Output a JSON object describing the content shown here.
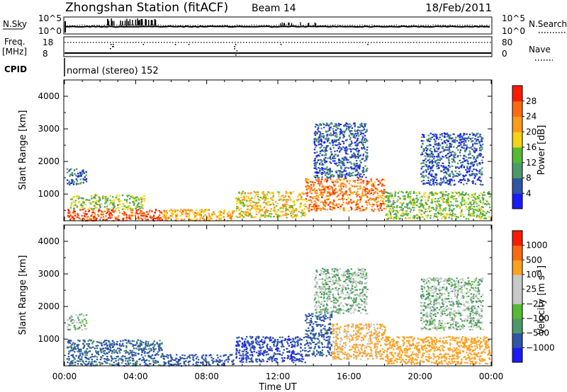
{
  "header": {
    "station": "Zhongshan Station (fitACF)",
    "beam": "Beam 14",
    "date": "18/Feb/2011"
  },
  "sky_panel": {
    "left_label": "N.Sky",
    "right_label": "N.Search",
    "left_ticks": [
      "10^5",
      "10^0"
    ],
    "right_ticks": [
      "10^5",
      "10^0"
    ]
  },
  "freq_panel": {
    "label_line1": "Freq.",
    "label_line2": "[MHz]",
    "left_ticks": [
      "18",
      "8"
    ],
    "right_label": "Nave",
    "right_ticks": [
      "80",
      "0"
    ]
  },
  "cpid": {
    "label": "CPID",
    "mode": "normal (stereo) 152"
  },
  "colors": {
    "power_scale": [
      "#1a1aff",
      "#2f55a6",
      "#4c9a6a",
      "#55bb33",
      "#f5d314",
      "#ff9a1a",
      "#ff6a10",
      "#ff1a00"
    ],
    "velocity_scale": [
      "#ff1a00",
      "#ff6a10",
      "#ffa020",
      "#c8c8c8",
      "#c8c8c8",
      "#55bb33",
      "#4c9a6a",
      "#2f55a6",
      "#1a1aff"
    ]
  },
  "chart_data": [
    {
      "type": "heatmap",
      "title": "",
      "xlabel": "",
      "ylabel": "Slant Range [km]",
      "x_ticks": [
        "00:00",
        "04:00",
        "08:00",
        "12:00",
        "16:00",
        "20:00",
        "00:00"
      ],
      "y_ticks": [
        "1000",
        "2000",
        "3000",
        "4000"
      ],
      "xlim": [
        0,
        24
      ],
      "ylim": [
        180,
        4500
      ],
      "colorbar": {
        "label": "Power [dB]",
        "ticks": [
          "4",
          "8",
          "12",
          "16",
          "20",
          "24",
          "28"
        ],
        "range": [
          0,
          30
        ]
      },
      "scatter_regions": [
        {
          "t0": 0.1,
          "t1": 5.5,
          "r0": 200,
          "r1": 550,
          "level": 26
        },
        {
          "t0": 0.3,
          "t1": 4.5,
          "r0": 550,
          "r1": 1000,
          "level": 14
        },
        {
          "t0": 5.5,
          "t1": 9.5,
          "r0": 200,
          "r1": 550,
          "level": 20
        },
        {
          "t0": 9.6,
          "t1": 13.5,
          "r0": 300,
          "r1": 1100,
          "level": 18
        },
        {
          "t0": 13.5,
          "t1": 18.0,
          "r0": 500,
          "r1": 1500,
          "level": 23
        },
        {
          "t0": 14.0,
          "t1": 17.0,
          "r0": 1500,
          "r1": 3200,
          "level": 6
        },
        {
          "t0": 18.0,
          "t1": 23.9,
          "r0": 250,
          "r1": 1100,
          "level": 13
        },
        {
          "t0": 20.0,
          "t1": 23.5,
          "r0": 1300,
          "r1": 2900,
          "level": 6
        },
        {
          "t0": 0.1,
          "t1": 1.2,
          "r0": 1300,
          "r1": 1800,
          "level": 7
        }
      ]
    },
    {
      "type": "heatmap",
      "title": "",
      "xlabel": "Time UT",
      "ylabel": "Slant Range [km]",
      "x_ticks": [
        "00:00",
        "04:00",
        "08:00",
        "12:00",
        "16:00",
        "20:00",
        "00:00"
      ],
      "y_ticks": [
        "1000",
        "2000",
        "3000",
        "4000"
      ],
      "xlim": [
        0,
        24
      ],
      "ylim": [
        180,
        4500
      ],
      "colorbar": {
        "label": "Velocity [m s^-1]",
        "ticks": [
          "1000",
          "500",
          "100",
          "25",
          "−25",
          "−100",
          "−500",
          "−1000"
        ],
        "range": [
          -1000,
          1000
        ]
      },
      "scatter_regions": [
        {
          "t0": 0.1,
          "t1": 5.5,
          "r0": 200,
          "r1": 1000,
          "level": -150
        },
        {
          "t0": 5.5,
          "t1": 9.5,
          "r0": 200,
          "r1": 550,
          "level": -300
        },
        {
          "t0": 9.6,
          "t1": 13.5,
          "r0": 300,
          "r1": 1100,
          "level": -400
        },
        {
          "t0": 13.5,
          "t1": 15.0,
          "r0": 500,
          "r1": 1800,
          "level": -200
        },
        {
          "t0": 15.0,
          "t1": 18.0,
          "r0": 400,
          "r1": 1500,
          "level": 150
        },
        {
          "t0": 14.0,
          "t1": 17.0,
          "r0": 1800,
          "r1": 3200,
          "level": 0
        },
        {
          "t0": 18.0,
          "t1": 23.9,
          "r0": 250,
          "r1": 1100,
          "level": 300
        },
        {
          "t0": 20.0,
          "t1": 23.5,
          "r0": 1300,
          "r1": 2900,
          "level": 0
        },
        {
          "t0": 0.1,
          "t1": 1.2,
          "r0": 1300,
          "r1": 1800,
          "level": 0
        }
      ]
    }
  ]
}
